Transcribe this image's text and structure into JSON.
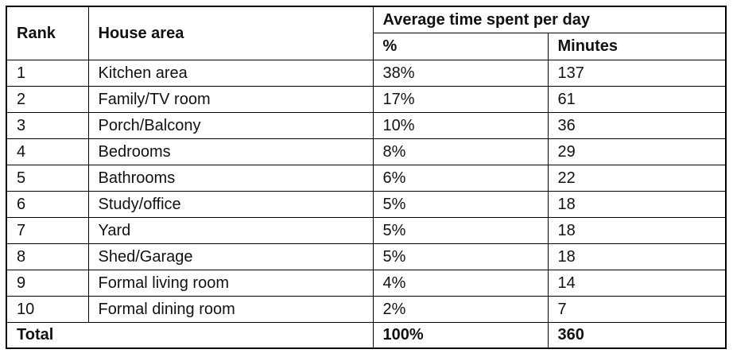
{
  "table": {
    "header": {
      "rank": "Rank",
      "area": "House area",
      "group": "Average time spent per day",
      "percent": "%",
      "minutes": "Minutes"
    },
    "rows": [
      {
        "rank": "1",
        "area": "Kitchen area",
        "percent": "38%",
        "minutes": "137"
      },
      {
        "rank": "2",
        "area": "Family/TV room",
        "percent": "17%",
        "minutes": "61"
      },
      {
        "rank": "3",
        "area": "Porch/Balcony",
        "percent": "10%",
        "minutes": "36"
      },
      {
        "rank": "4",
        "area": "Bedrooms",
        "percent": "8%",
        "minutes": "29"
      },
      {
        "rank": "5",
        "area": "Bathrooms",
        "percent": "6%",
        "minutes": "22"
      },
      {
        "rank": "6",
        "area": "Study/office",
        "percent": "5%",
        "minutes": "18"
      },
      {
        "rank": "7",
        "area": "Yard",
        "percent": "5%",
        "minutes": "18"
      },
      {
        "rank": "8",
        "area": "Shed/Garage",
        "percent": "5%",
        "minutes": "18"
      },
      {
        "rank": "9",
        "area": "Formal living room",
        "percent": "4%",
        "minutes": "14"
      },
      {
        "rank": "10",
        "area": "Formal dining room",
        "percent": "2%",
        "minutes": "7"
      }
    ],
    "total": {
      "label": "Total",
      "percent": "100%",
      "minutes": "360"
    }
  },
  "chart_data": {
    "type": "table",
    "title": "",
    "columns": [
      "Rank",
      "House area",
      "Average time spent per day %",
      "Average time spent per day Minutes"
    ],
    "rows": [
      [
        1,
        "Kitchen area",
        "38%",
        137
      ],
      [
        2,
        "Family/TV room",
        "17%",
        61
      ],
      [
        3,
        "Porch/Balcony",
        "10%",
        36
      ],
      [
        4,
        "Bedrooms",
        "8%",
        29
      ],
      [
        5,
        "Bathrooms",
        "6%",
        22
      ],
      [
        6,
        "Study/office",
        "5%",
        18
      ],
      [
        7,
        "Yard",
        "5%",
        18
      ],
      [
        8,
        "Shed/Garage",
        "5%",
        18
      ],
      [
        9,
        "Formal living room",
        "4%",
        14
      ],
      [
        10,
        "Formal dining room",
        "2%",
        7
      ]
    ],
    "total_row": [
      "Total",
      "",
      "100%",
      360
    ]
  }
}
